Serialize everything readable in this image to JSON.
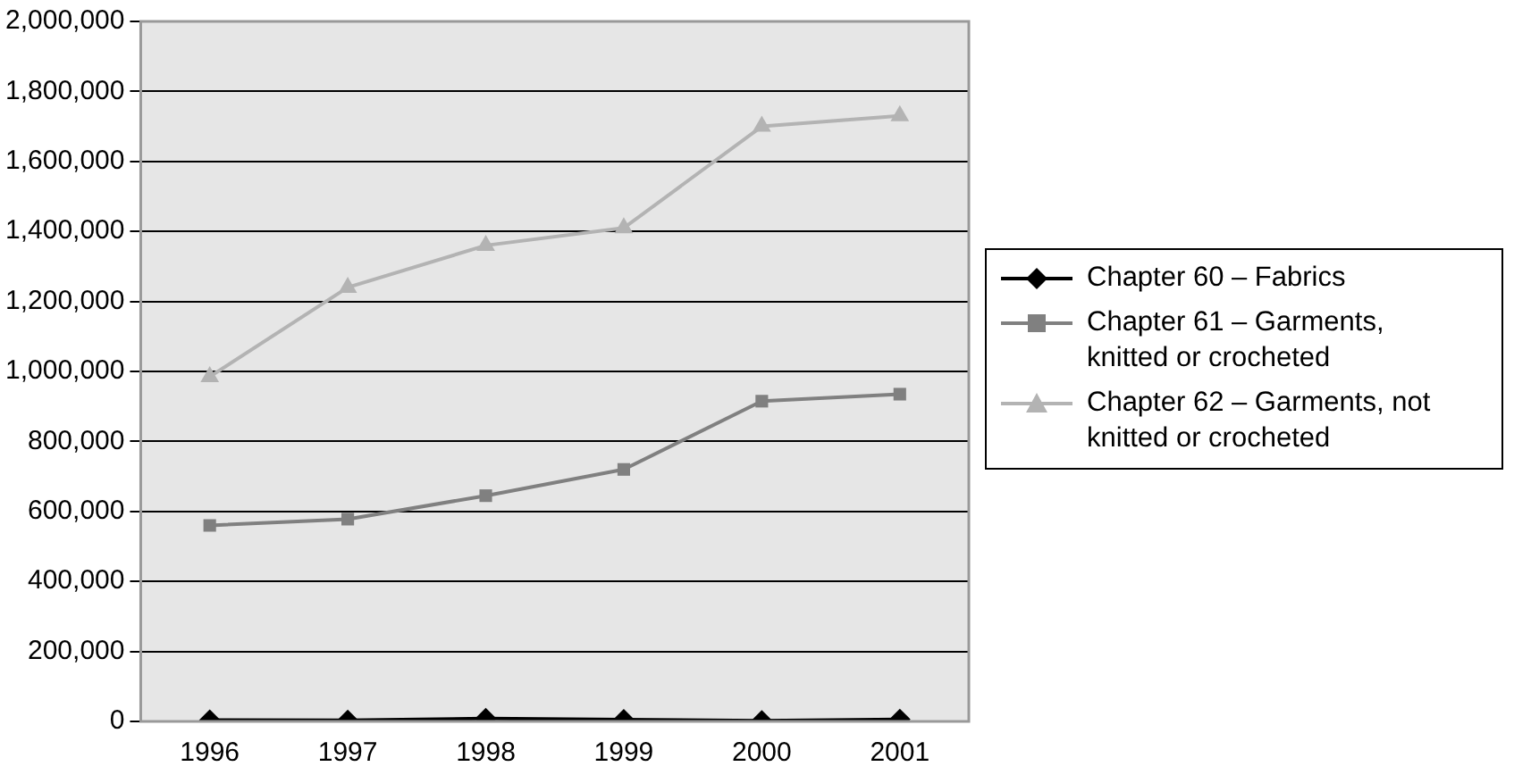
{
  "chart_data": {
    "type": "line",
    "categories": [
      "1996",
      "1997",
      "1998",
      "1999",
      "2000",
      "2001"
    ],
    "series": [
      {
        "name": "Chapter 60 – Fabrics",
        "color": "#000000",
        "marker": "diamond",
        "values": [
          4000,
          3000,
          8000,
          5000,
          2000,
          6000
        ]
      },
      {
        "name": "Chapter 61 – Garments, knitted or crocheted",
        "color": "#808080",
        "marker": "square",
        "values": [
          560000,
          578000,
          645000,
          720000,
          915000,
          935000
        ]
      },
      {
        "name": "Chapter 62 – Garments, not knitted or crocheted",
        "color": "#b3b3b3",
        "marker": "triangle",
        "values": [
          985000,
          1240000,
          1360000,
          1410000,
          1700000,
          1730000
        ]
      }
    ],
    "ylim": [
      0,
      2000000
    ],
    "yticks": [
      0,
      {
        "value": 200000,
        "label": "200,000"
      },
      {
        "value": 400000,
        "label": "400,000"
      },
      {
        "value": 600000,
        "label": "600,000"
      },
      {
        "value": 800000,
        "label": "800,000"
      },
      {
        "value": 1000000,
        "label": "1,000,000"
      },
      {
        "value": 1200000,
        "label": "1,200,000"
      },
      {
        "value": 1400000,
        "label": "1,400,000"
      },
      {
        "value": 1600000,
        "label": "1,600,000"
      },
      {
        "value": 1800000,
        "label": "1,800,000"
      },
      {
        "value": 2000000,
        "label": "2,000,000"
      }
    ],
    "grid": "y",
    "legend": "right"
  }
}
